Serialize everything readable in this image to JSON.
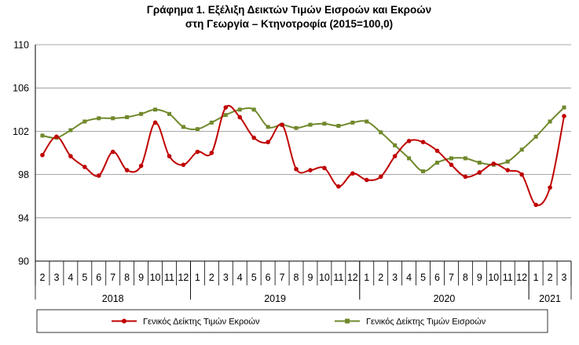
{
  "chart_data": {
    "type": "line",
    "title_line1": "Γράφημα 1. Εξέλιξη Δεικτών Τιμών Εισροών και Εκροών",
    "title_line2": "στη Γεωργία – Κτηνοτροφία (2015=100,0)",
    "ylim": [
      90,
      110
    ],
    "yticks": [
      90,
      94,
      98,
      102,
      106,
      110
    ],
    "grid": true,
    "legend_position": "bottom",
    "years": [
      {
        "label": "2018",
        "start": 0,
        "end": 11
      },
      {
        "label": "2019",
        "start": 11,
        "end": 23
      },
      {
        "label": "2020",
        "start": 23,
        "end": 35
      },
      {
        "label": "2021",
        "start": 35,
        "end": 38
      }
    ],
    "categories": [
      "2",
      "3",
      "4",
      "5",
      "6",
      "7",
      "8",
      "9",
      "10",
      "11",
      "12",
      "1",
      "2",
      "3",
      "4",
      "5",
      "6",
      "7",
      "8",
      "9",
      "10",
      "11",
      "12",
      "1",
      "2",
      "3",
      "4",
      "5",
      "6",
      "7",
      "8",
      "9",
      "10",
      "11",
      "12",
      "1",
      "2",
      "3"
    ],
    "series": [
      {
        "name": "Γενικός Δείκτης Τιμών Εκροών",
        "color": "#c00000",
        "marker": "circle",
        "values": [
          99.8,
          101.5,
          99.7,
          98.7,
          97.9,
          100.1,
          98.4,
          98.8,
          102.8,
          99.7,
          98.9,
          100.1,
          100.0,
          104.2,
          103.3,
          101.4,
          101.0,
          102.6,
          98.5,
          98.4,
          98.6,
          96.9,
          98.1,
          97.5,
          97.8,
          99.7,
          101.1,
          101.0,
          100.2,
          98.9,
          97.8,
          98.2,
          99.0,
          98.4,
          98.0,
          95.2,
          96.8,
          103.4
        ]
      },
      {
        "name": "Γενικός Δείκτης Τιμών Εισροών",
        "color": "#70892c",
        "marker": "square",
        "values": [
          101.6,
          101.4,
          102.1,
          102.9,
          103.2,
          103.2,
          103.3,
          103.6,
          104.0,
          103.6,
          102.4,
          102.2,
          102.8,
          103.5,
          104.0,
          104.0,
          102.4,
          102.6,
          102.3,
          102.6,
          102.7,
          102.5,
          102.8,
          102.9,
          101.9,
          100.7,
          99.5,
          98.3,
          99.1,
          99.5,
          99.5,
          99.1,
          98.9,
          99.2,
          100.3,
          101.5,
          102.9,
          104.2
        ]
      }
    ]
  }
}
